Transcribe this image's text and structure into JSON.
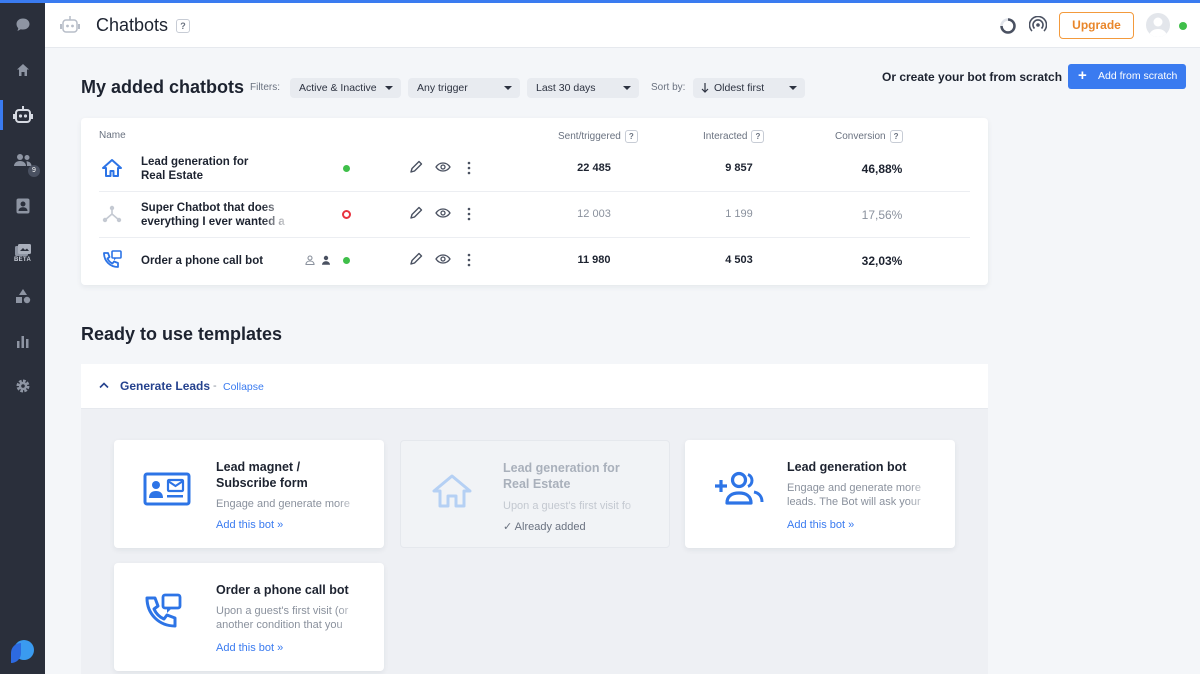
{
  "header": {
    "title": "Chatbots",
    "help": "?",
    "upgrade_label": "Upgrade"
  },
  "sidebar": {
    "items": [
      {
        "icon": "chat-bubble-icon"
      },
      {
        "icon": "home-icon"
      },
      {
        "icon": "bot-icon",
        "active": true
      },
      {
        "icon": "visitors-icon",
        "badge": "9"
      },
      {
        "icon": "contacts-icon"
      },
      {
        "icon": "campaigns-icon",
        "badge": "BETA"
      },
      {
        "icon": "shapes-icon"
      },
      {
        "icon": "analytics-icon"
      },
      {
        "icon": "settings-icon"
      }
    ]
  },
  "main": {
    "heading": "My added chatbots",
    "filters_label": "Filters:",
    "filter_status": "Active & Inactive",
    "filter_trigger": "Any trigger",
    "filter_period": "Last 30 days",
    "sort_label": "Sort by:",
    "sort_value": "Oldest first",
    "create_label": "Or create your bot from scratch",
    "add_label": "Add from scratch"
  },
  "table": {
    "columns": {
      "name": "Name",
      "sent": "Sent/triggered",
      "interacted": "Interacted",
      "conversion": "Conversion"
    },
    "help": "?",
    "rows": [
      {
        "name": "Lead generation for",
        "name2": "Real Estate",
        "status": "active",
        "sent": "22 485",
        "interacted": "9 857",
        "conversion": "46,88%"
      },
      {
        "name": "Super Chatbot that does",
        "name2": "everything I ever wanted a",
        "status": "inactive",
        "sent": "12 003",
        "interacted": "1 199",
        "conversion": "17,56%"
      },
      {
        "name": "Order a phone call bot",
        "status": "active",
        "sent": "11 980",
        "interacted": "4 503",
        "conversion": "32,03%"
      }
    ]
  },
  "templates": {
    "heading": "Ready to use templates",
    "group_title": "Generate Leads",
    "group_sep": "-",
    "collapse_label": "Collapse",
    "cards": [
      {
        "title1": "Lead magnet /",
        "title2": "Subscribe form",
        "desc1": "Engage and generate more",
        "link": "Add this bot »"
      },
      {
        "title1": "Lead generation for",
        "title2": "Real Estate",
        "desc1": "Upon a guest's first visit fo",
        "added": "Already added"
      },
      {
        "title1": "Lead generation bot",
        "desc1": "Engage and generate more",
        "desc2": "leads. The Bot will ask your",
        "link": "Add this bot »"
      },
      {
        "title1": "Order a phone call bot",
        "desc1": "Upon a guest's first visit (or",
        "desc2": "another condition that you",
        "link": "Add this bot »"
      }
    ]
  },
  "colors": {
    "accent": "#3a7bf0",
    "sidebar": "#2a2f3b",
    "upgrade": "#f39a3c",
    "online": "#3fbf4a",
    "inactive": "#e8333f"
  }
}
